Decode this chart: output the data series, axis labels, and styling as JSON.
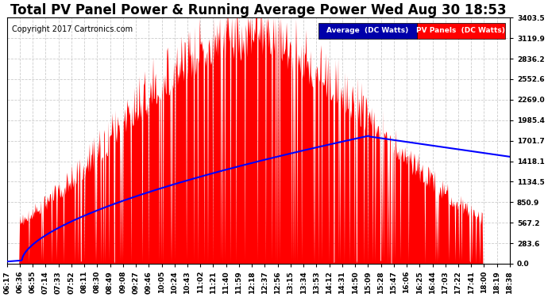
{
  "title": "Total PV Panel Power & Running Average Power Wed Aug 30 18:53",
  "copyright": "Copyright 2017 Cartronics.com",
  "legend_avg": "Average  (DC Watts)",
  "legend_pv": "PV Panels  (DC Watts)",
  "yticks": [
    0.0,
    283.6,
    567.2,
    850.9,
    1134.5,
    1418.1,
    1701.7,
    1985.4,
    2269.0,
    2552.6,
    2836.2,
    3119.9,
    3403.5
  ],
  "ymax": 3403.5,
  "xtick_labels": [
    "06:17",
    "06:36",
    "06:55",
    "07:14",
    "07:33",
    "07:52",
    "08:11",
    "08:30",
    "08:49",
    "09:08",
    "09:27",
    "09:46",
    "10:05",
    "10:24",
    "10:43",
    "11:02",
    "11:21",
    "11:40",
    "11:59",
    "12:18",
    "12:37",
    "12:56",
    "13:15",
    "13:34",
    "13:53",
    "14:12",
    "14:31",
    "14:50",
    "15:09",
    "15:28",
    "15:47",
    "16:06",
    "16:25",
    "16:44",
    "17:03",
    "17:22",
    "17:41",
    "18:00",
    "18:19",
    "18:38"
  ],
  "bg_color": "#ffffff",
  "plot_bg_color": "#ffffff",
  "grid_color": "#cccccc",
  "bar_color": "#ff0000",
  "line_color": "#0000ff",
  "title_fontsize": 12,
  "tick_fontsize": 6.5,
  "copyright_fontsize": 7
}
